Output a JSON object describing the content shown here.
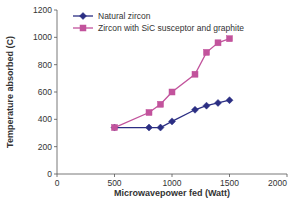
{
  "chart_data": {
    "type": "line",
    "x_label": "Microwavepower fed (Watt)",
    "y_label": "Temperature absorbed (C)",
    "x": [
      500,
      800,
      900,
      1000,
      1200,
      1300,
      1400,
      1500
    ],
    "series": [
      {
        "name": "Natural zircon",
        "color": "#2b2e83",
        "marker": "diamond",
        "line_style": "solid",
        "values": [
          340,
          340,
          340,
          385,
          470,
          500,
          520,
          540
        ]
      },
      {
        "name": "Zircon with SiC susceptor and graphite",
        "color": "#c2539c",
        "marker": "square",
        "line_style": "solid",
        "values": [
          340,
          450,
          510,
          600,
          730,
          890,
          960,
          990
        ]
      }
    ],
    "xlim": [
      0,
      2000
    ],
    "xticks": [
      0,
      500,
      1000,
      1500,
      2000
    ],
    "ylim": [
      0,
      1200
    ],
    "yticks": [
      0,
      200,
      400,
      600,
      800,
      1000,
      1200
    ],
    "grid": false,
    "legend": "upper left"
  }
}
